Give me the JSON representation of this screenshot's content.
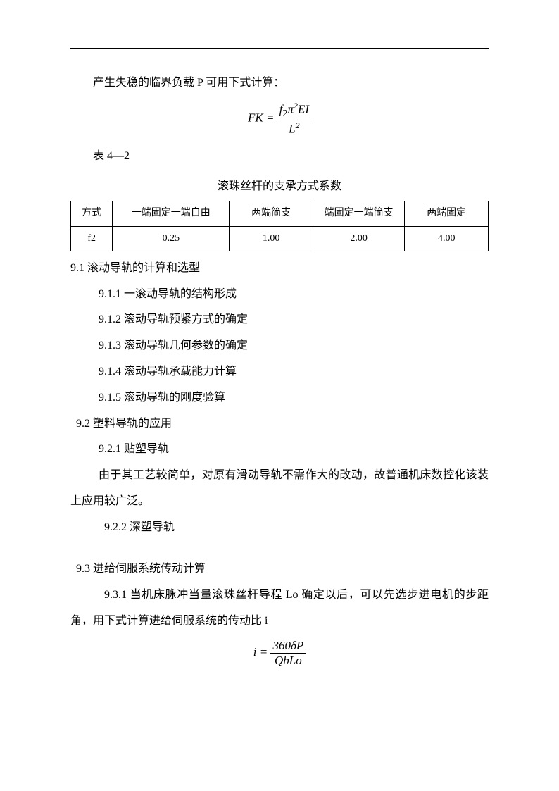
{
  "intro_line": "产生失稳的临界负载 P 可用下式计算：",
  "formula1_lhs": "FK",
  "formula1_num_a": "f",
  "formula1_num_b": "π",
  "formula1_num_c": "EI",
  "formula1_den": "L",
  "table_label": "表 4—2",
  "table_title": "滚珠丝杆的支承方式系数",
  "table": {
    "headers": [
      "方式",
      "一端固定一端自由",
      "两端简支",
      "端固定一端简支",
      "两端固定"
    ],
    "row_label": "f2",
    "values": [
      "0.25",
      "1.00",
      "2.00",
      "4.00"
    ]
  },
  "s91": "9.1 滚动导轨的计算和选型",
  "s911": "9.1.1 一滚动导轨的结构形成",
  "s912": "9.1.2 滚动导轨预紧方式的确定",
  "s913": "9.1.3 滚动导轨几何参数的确定",
  "s914": "9.1.4 滚动导轨承载能力计算",
  "s915": "9.1.5 滚动导轨的刚度验算",
  "s92": "9.2 塑料导轨的应用",
  "s921": "9.2.1 贴塑导轨",
  "p921": "由于其工艺较简单，对原有滑动导轨不需作大的改动，故普通机床数控化该装上应用较广泛。",
  "s922": "9.2.2 深塑导轨",
  "s93": "9.3 进给伺服系统传动计算",
  "s931": "9.3.1 当机床脉冲当量滚珠丝杆导程 Lo 确定以后，可以先选步进电机的步距角，用下式计算进给伺服系统的传动比 i",
  "formula2_lhs": "i",
  "formula2_num": "360δP",
  "formula2_den": "QbLo"
}
